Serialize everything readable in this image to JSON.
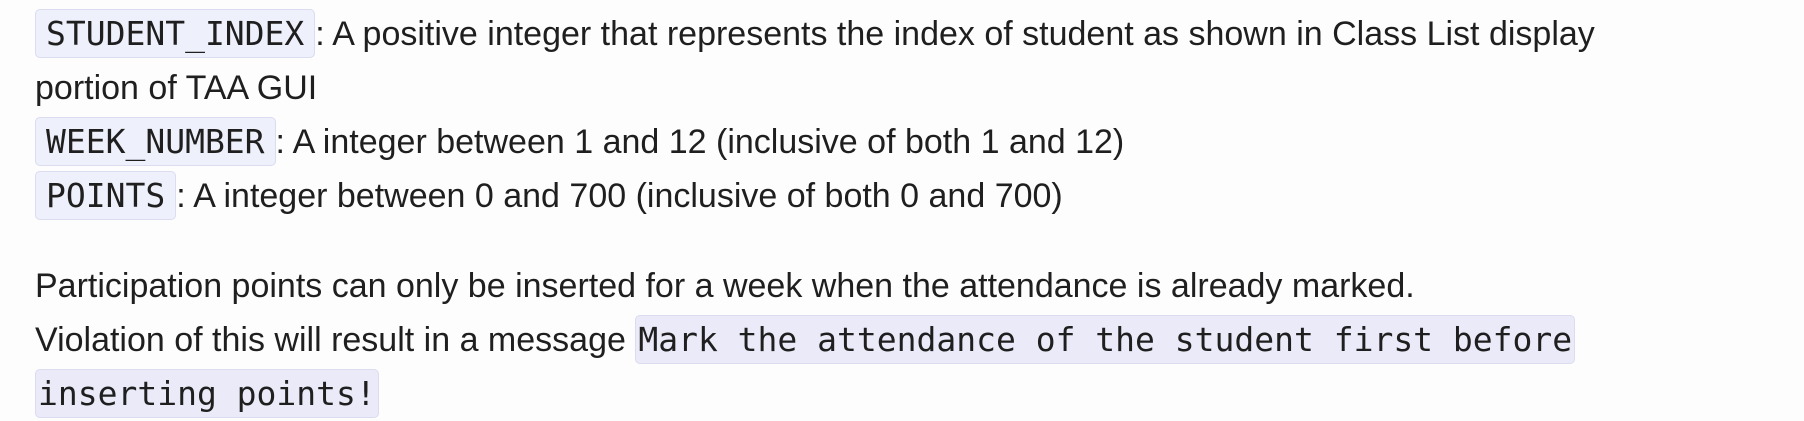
{
  "params": [
    {
      "name": "STUDENT_INDEX",
      "description": ": A positive integer that represents the index of student as shown in Class List display",
      "continuation": "portion of TAA GUI"
    },
    {
      "name": "WEEK_NUMBER",
      "description": ": A integer between 1 and 12 (inclusive of both 1 and 12)"
    },
    {
      "name": "POINTS",
      "description": ": A integer between 0 and 700 (inclusive of both 0 and 700)"
    }
  ],
  "note": {
    "line1": "Participation points can only be inserted for a week when the attendance is already marked.",
    "line2_prefix": "Violation of this will result in a message ",
    "message_part1": "Mark the attendance of the student first before",
    "message_part2": "inserting points!"
  }
}
